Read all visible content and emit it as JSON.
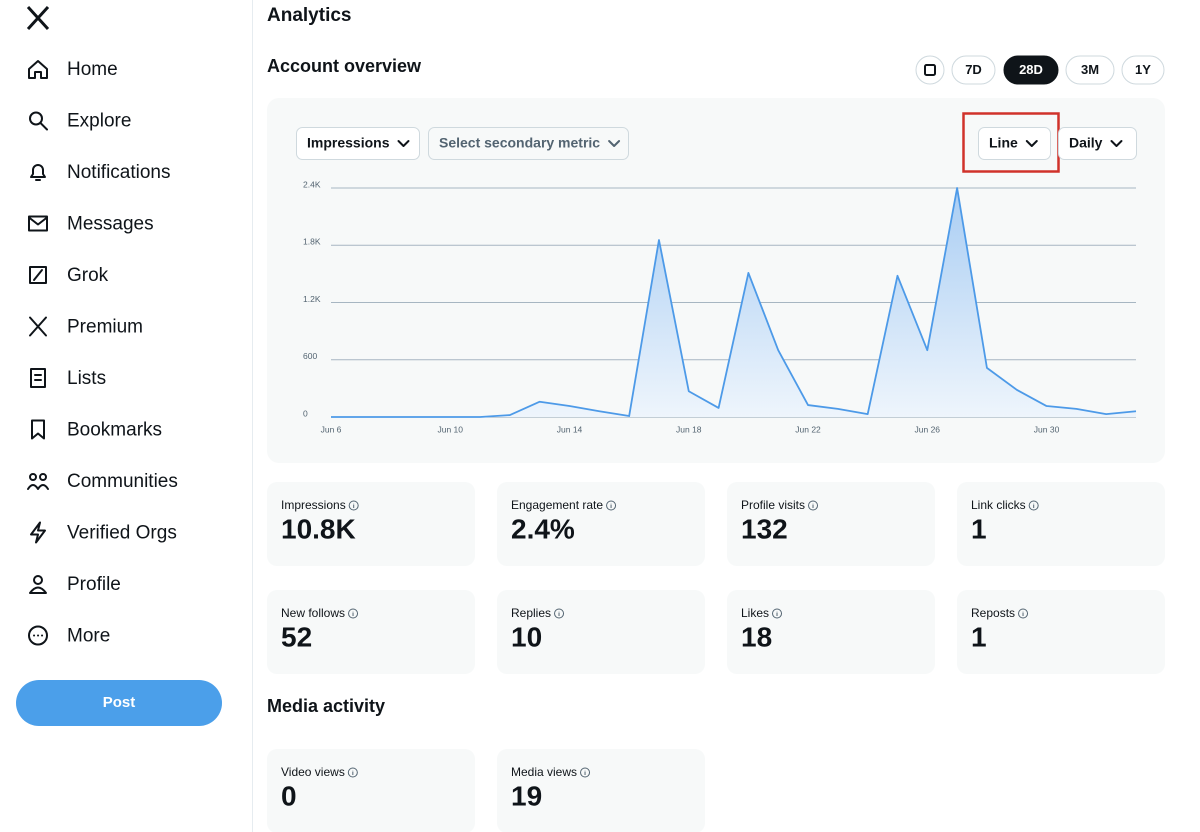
{
  "sidebar": {
    "nav": [
      "Home",
      "Explore",
      "Notifications",
      "Messages",
      "Grok",
      "Premium",
      "Lists",
      "Bookmarks",
      "Communities",
      "Verified Orgs",
      "Profile",
      "More"
    ],
    "post_button": "Post"
  },
  "header": {
    "title": "Analytics",
    "section": "Account overview",
    "ranges": [
      "7D",
      "28D",
      "3M",
      "1Y"
    ],
    "active_range": "28D"
  },
  "controls": {
    "primary_metric": "Impressions",
    "secondary_metric": "Select secondary metric",
    "chart_style": "Line",
    "interval": "Daily"
  },
  "chart_data": {
    "type": "line",
    "color": "#4d9ae8",
    "grid": true,
    "categories": [
      "Jun 6",
      null,
      null,
      null,
      "Jun 10",
      null,
      null,
      null,
      "Jun 14",
      null,
      null,
      null,
      "Jun 18",
      null,
      null,
      null,
      "Jun 22",
      null,
      null,
      null,
      "Jun 26",
      null,
      null,
      null,
      "Jun 30",
      null,
      null,
      null
    ],
    "values": [
      0,
      0,
      0,
      0,
      0,
      0,
      20,
      160,
      115,
      60,
      10,
      1855,
      270,
      95,
      1510,
      700,
      125,
      85,
      30,
      1480,
      700,
      2400,
      515,
      285,
      115,
      85,
      30,
      60
    ],
    "ylim": [
      0,
      2400
    ],
    "yticks": [
      0,
      600,
      {
        "value": 1200,
        "label": "1.2K"
      },
      {
        "value": 1800,
        "label": "1.8K"
      },
      {
        "value": 2400,
        "label": "2.4K"
      }
    ]
  },
  "stats": [
    {
      "label": "Impressions",
      "value": "10.8K"
    },
    {
      "label": "Engagement rate",
      "value": "2.4%"
    },
    {
      "label": "Profile visits",
      "value": "132"
    },
    {
      "label": "Link clicks",
      "value": "1"
    },
    {
      "label": "New follows",
      "value": "52"
    },
    {
      "label": "Replies",
      "value": "10"
    },
    {
      "label": "Likes",
      "value": "18"
    },
    {
      "label": "Reposts",
      "value": "1"
    }
  ],
  "media": {
    "title": "Media activity",
    "stats": [
      {
        "label": "Video views",
        "value": "0"
      },
      {
        "label": "Media views",
        "value": "19"
      }
    ]
  }
}
